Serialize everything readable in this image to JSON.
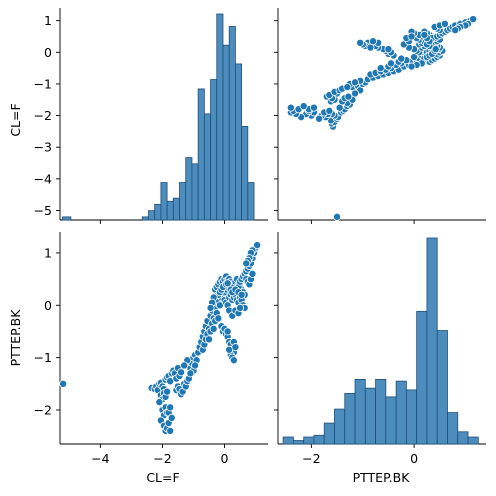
{
  "chart_data": {
    "type": "pairplot",
    "variables": [
      "CL=F",
      "PTTEP.BK"
    ],
    "colors": {
      "primary": "#1f77b4",
      "hist_fill": "#4c8dbd",
      "hist_edge": "#1f4e79"
    },
    "axes": {
      "CL=F": {
        "range": [
          -5.3,
          1.4
        ],
        "ticks": [
          -5,
          -4,
          -3,
          -2,
          -1,
          0,
          1
        ],
        "tick_labels": [
          "−5",
          "−4",
          "−3",
          "−2",
          "−1",
          "0",
          "1"
        ]
      },
      "PTTEP.BK": {
        "range": [
          -2.65,
          1.4
        ],
        "ticks": [
          -2,
          -1,
          0,
          1
        ],
        "tick_labels": [
          "−2",
          "−1",
          "0",
          "1"
        ]
      }
    },
    "x_tick_labels": {
      "CL=F": [
        "−4",
        "−2",
        "0"
      ],
      "PTTEP.BK": [
        "−2",
        "0"
      ]
    },
    "x_tick_values": {
      "CL=F": [
        -4,
        -2,
        0
      ],
      "PTTEP.BK": [
        -2,
        0
      ]
    },
    "panels": [
      {
        "type": "histogram",
        "variable": "CL=F",
        "bins": [
          {
            "x0": -5.22,
            "x1": -4.95,
            "count": 1
          },
          {
            "x0": -2.65,
            "x1": -2.45,
            "count": 1
          },
          {
            "x0": -2.45,
            "x1": -2.25,
            "count": 3
          },
          {
            "x0": -2.25,
            "x1": -2.05,
            "count": 5
          },
          {
            "x0": -2.05,
            "x1": -1.85,
            "count": 12
          },
          {
            "x0": -1.85,
            "x1": -1.65,
            "count": 6
          },
          {
            "x0": -1.65,
            "x1": -1.45,
            "count": 7
          },
          {
            "x0": -1.45,
            "x1": -1.25,
            "count": 12
          },
          {
            "x0": -1.25,
            "x1": -1.05,
            "count": 20
          },
          {
            "x0": -1.05,
            "x1": -0.85,
            "count": 18
          },
          {
            "x0": -0.85,
            "x1": -0.65,
            "count": 42
          },
          {
            "x0": -0.65,
            "x1": -0.45,
            "count": 34
          },
          {
            "x0": -0.45,
            "x1": -0.25,
            "count": 45
          },
          {
            "x0": -0.25,
            "x1": -0.05,
            "count": 66
          },
          {
            "x0": -0.05,
            "x1": 0.15,
            "count": 56
          },
          {
            "x0": 0.15,
            "x1": 0.35,
            "count": 62
          },
          {
            "x0": 0.35,
            "x1": 0.55,
            "count": 50
          },
          {
            "x0": 0.55,
            "x1": 0.75,
            "count": 30
          },
          {
            "x0": 0.75,
            "x1": 0.95,
            "count": 12
          }
        ]
      },
      {
        "type": "histogram",
        "variable": "PTTEP.BK",
        "bins": [
          {
            "x0": -2.55,
            "x1": -2.35,
            "count": 4
          },
          {
            "x0": -2.35,
            "x1": -2.15,
            "count": 2
          },
          {
            "x0": -2.15,
            "x1": -1.95,
            "count": 4
          },
          {
            "x0": -1.95,
            "x1": -1.75,
            "count": 5
          },
          {
            "x0": -1.75,
            "x1": -1.55,
            "count": 12
          },
          {
            "x0": -1.55,
            "x1": -1.35,
            "count": 20
          },
          {
            "x0": -1.35,
            "x1": -1.15,
            "count": 29
          },
          {
            "x0": -1.15,
            "x1": -0.95,
            "count": 37
          },
          {
            "x0": -0.95,
            "x1": -0.75,
            "count": 32
          },
          {
            "x0": -0.75,
            "x1": -0.55,
            "count": 37
          },
          {
            "x0": -0.55,
            "x1": -0.35,
            "count": 27
          },
          {
            "x0": -0.35,
            "x1": -0.15,
            "count": 36
          },
          {
            "x0": -0.15,
            "x1": 0.05,
            "count": 31
          },
          {
            "x0": 0.05,
            "x1": 0.25,
            "count": 76
          },
          {
            "x0": 0.25,
            "x1": 0.45,
            "count": 118
          },
          {
            "x0": 0.45,
            "x1": 0.65,
            "count": 65
          },
          {
            "x0": 0.65,
            "x1": 0.85,
            "count": 18
          },
          {
            "x0": 0.85,
            "x1": 1.05,
            "count": 7
          },
          {
            "x0": 1.05,
            "x1": 1.25,
            "count": 4
          }
        ]
      }
    ],
    "scatter": {
      "x_var": "CL=F",
      "y_var": "PTTEP.BK",
      "points": [
        [
          -5.2,
          -1.5
        ],
        [
          -2.35,
          -1.58
        ],
        [
          -2.25,
          -1.6
        ],
        [
          -2.2,
          -1.55
        ],
        [
          -2.15,
          -1.62
        ],
        [
          -2.1,
          -1.5
        ],
        [
          -2.05,
          -1.48
        ],
        [
          -2.0,
          -1.55
        ],
        [
          -1.95,
          -1.6
        ],
        [
          -1.9,
          -1.42
        ],
        [
          -1.85,
          -1.38
        ],
        [
          -1.8,
          -1.35
        ],
        [
          -1.75,
          -1.45
        ],
        [
          -1.7,
          -1.3
        ],
        [
          -1.65,
          -1.25
        ],
        [
          -1.6,
          -1.3
        ],
        [
          -1.55,
          -1.4
        ],
        [
          -1.5,
          -1.2
        ],
        [
          -1.45,
          -1.35
        ],
        [
          -1.4,
          -1.28
        ],
        [
          -2.05,
          -1.72
        ],
        [
          -2.0,
          -1.8
        ],
        [
          -1.95,
          -1.68
        ],
        [
          -1.9,
          -1.75
        ],
        [
          -2.1,
          -1.85
        ],
        [
          -1.85,
          -1.65
        ],
        [
          -2.0,
          -2.0
        ],
        [
          -1.95,
          -2.1
        ],
        [
          -1.9,
          -1.95
        ],
        [
          -1.85,
          -2.05
        ],
        [
          -2.05,
          -2.2
        ],
        [
          -1.95,
          -2.3
        ],
        [
          -1.9,
          -2.4
        ],
        [
          -1.85,
          -2.35
        ],
        [
          -1.8,
          -2.25
        ],
        [
          -1.75,
          -2.4
        ],
        [
          -1.8,
          -2.05
        ],
        [
          -1.7,
          -2.15
        ],
        [
          -1.75,
          -1.95
        ],
        [
          -1.55,
          -1.62
        ],
        [
          -1.5,
          -1.55
        ],
        [
          -1.45,
          -1.6
        ],
        [
          -1.4,
          -1.7
        ],
        [
          -1.35,
          -1.65
        ],
        [
          -1.3,
          -1.5
        ],
        [
          -1.25,
          -1.55
        ],
        [
          -1.2,
          -1.45
        ],
        [
          -1.15,
          -1.4
        ],
        [
          -1.1,
          -1.2
        ],
        [
          -1.05,
          -1.1
        ],
        [
          -1.0,
          -1.25
        ],
        [
          -1.2,
          -1.05
        ],
        [
          -1.1,
          -1.3
        ],
        [
          -1.3,
          -1.15
        ],
        [
          -1.0,
          -1.0
        ],
        [
          -0.95,
          -0.95
        ],
        [
          -0.9,
          -1.05
        ],
        [
          -0.85,
          -0.9
        ],
        [
          -0.95,
          -1.15
        ],
        [
          -0.8,
          -0.8
        ],
        [
          -0.75,
          -0.7
        ],
        [
          -0.7,
          -0.6
        ],
        [
          -0.65,
          -0.5
        ],
        [
          -0.6,
          -0.4
        ],
        [
          -0.55,
          -0.3
        ],
        [
          -0.5,
          -0.45
        ],
        [
          -0.45,
          -0.2
        ],
        [
          -0.4,
          -0.1
        ],
        [
          -0.35,
          -0.25
        ],
        [
          -0.3,
          -0.05
        ],
        [
          -0.25,
          0.05
        ],
        [
          -0.2,
          0.1
        ],
        [
          -0.15,
          0.0
        ],
        [
          -0.1,
          0.15
        ],
        [
          -0.05,
          0.2
        ],
        [
          0.0,
          0.25
        ],
        [
          0.05,
          0.3
        ],
        [
          0.1,
          0.35
        ],
        [
          0.15,
          0.4
        ],
        [
          -0.7,
          -0.85
        ],
        [
          -0.65,
          -0.75
        ],
        [
          -0.6,
          -0.65
        ],
        [
          -0.55,
          -0.55
        ],
        [
          -0.5,
          -0.65
        ],
        [
          -0.45,
          -0.5
        ],
        [
          -0.4,
          -0.35
        ],
        [
          -0.35,
          -0.45
        ],
        [
          -0.3,
          -0.3
        ],
        [
          -0.25,
          -0.15
        ],
        [
          -0.2,
          -0.25
        ],
        [
          -0.1,
          -0.4
        ],
        [
          -0.05,
          -0.5
        ],
        [
          0.0,
          -0.45
        ],
        [
          0.05,
          -0.55
        ],
        [
          0.1,
          -0.6
        ],
        [
          0.15,
          -0.7
        ],
        [
          0.2,
          -0.75
        ],
        [
          0.25,
          -0.85
        ],
        [
          0.3,
          -0.9
        ],
        [
          0.2,
          -0.95
        ],
        [
          0.25,
          -1.0
        ],
        [
          0.3,
          -1.05
        ],
        [
          0.15,
          -0.85
        ],
        [
          0.1,
          -0.5
        ],
        [
          0.3,
          -0.7
        ],
        [
          0.35,
          -0.8
        ],
        [
          -0.3,
          0.3
        ],
        [
          -0.25,
          0.35
        ],
        [
          -0.2,
          0.4
        ],
        [
          -0.15,
          0.45
        ],
        [
          -0.1,
          0.5
        ],
        [
          -0.05,
          0.45
        ],
        [
          0.0,
          0.5
        ],
        [
          0.05,
          0.55
        ],
        [
          0.1,
          0.48
        ],
        [
          0.15,
          0.5
        ],
        [
          0.2,
          0.45
        ],
        [
          0.25,
          0.4
        ],
        [
          0.3,
          0.35
        ],
        [
          0.35,
          0.45
        ],
        [
          0.4,
          0.5
        ],
        [
          0.45,
          0.4
        ],
        [
          0.5,
          0.35
        ],
        [
          0.55,
          0.3
        ],
        [
          0.6,
          0.25
        ],
        [
          0.65,
          0.2
        ],
        [
          -0.2,
          0.2
        ],
        [
          -0.15,
          0.25
        ],
        [
          -0.1,
          0.3
        ],
        [
          0.0,
          0.1
        ],
        [
          0.05,
          0.05
        ],
        [
          0.1,
          0.0
        ],
        [
          0.15,
          0.15
        ],
        [
          0.2,
          0.2
        ],
        [
          0.25,
          0.1
        ],
        [
          0.3,
          0.15
        ],
        [
          0.35,
          0.2
        ],
        [
          0.4,
          0.1
        ],
        [
          0.45,
          0.05
        ],
        [
          0.5,
          0.15
        ],
        [
          0.55,
          0.1
        ],
        [
          0.6,
          0.0
        ],
        [
          0.65,
          -0.05
        ],
        [
          0.4,
          0.3
        ],
        [
          0.45,
          0.35
        ],
        [
          0.5,
          0.45
        ],
        [
          0.55,
          0.5
        ],
        [
          0.6,
          0.55
        ],
        [
          0.65,
          0.6
        ],
        [
          0.7,
          0.65
        ],
        [
          0.75,
          0.7
        ],
        [
          0.8,
          0.75
        ],
        [
          0.85,
          0.8
        ],
        [
          0.9,
          0.9
        ],
        [
          0.95,
          1.0
        ],
        [
          1.0,
          1.1
        ],
        [
          1.05,
          1.15
        ],
        [
          0.9,
          1.05
        ],
        [
          0.85,
          1.0
        ],
        [
          0.8,
          0.9
        ],
        [
          0.75,
          0.85
        ],
        [
          0.7,
          0.8
        ],
        [
          0.7,
          0.5
        ],
        [
          0.75,
          0.45
        ],
        [
          0.8,
          0.4
        ],
        [
          0.85,
          0.5
        ],
        [
          0.9,
          0.6
        ],
        [
          -0.05,
          0.35
        ],
        [
          0.05,
          0.4
        ],
        [
          0.1,
          0.42
        ],
        [
          0.2,
          0.3
        ],
        [
          0.25,
          0.25
        ],
        [
          0.35,
          0.3
        ],
        [
          0.45,
          0.25
        ],
        [
          0.55,
          0.2
        ],
        [
          0.15,
          -0.1
        ],
        [
          0.25,
          -0.2
        ],
        [
          0.35,
          -0.1
        ],
        [
          0.45,
          -0.15
        ],
        [
          0.5,
          -0.05
        ],
        [
          -0.35,
          0.15
        ],
        [
          -0.4,
          0.05
        ],
        [
          -0.45,
          -0.05
        ]
      ]
    }
  }
}
